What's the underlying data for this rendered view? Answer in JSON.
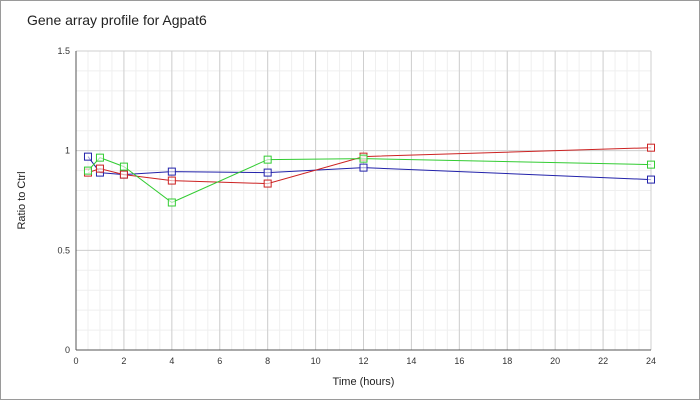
{
  "chart_data": {
    "type": "line",
    "title": "Gene array profile for Agpat6",
    "xlabel": "Time (hours)",
    "ylabel": "Ratio to Ctrl",
    "xlim": [
      0,
      24
    ],
    "ylim": [
      0,
      1.5
    ],
    "x_ticks": [
      0,
      2,
      4,
      6,
      8,
      10,
      12,
      14,
      16,
      18,
      20,
      22,
      24
    ],
    "y_ticks": [
      0,
      0.5,
      1,
      1.5
    ],
    "y_tick_labels": [
      "0",
      "0.5",
      "1",
      "1.5"
    ],
    "grid": true,
    "minor_grid": true,
    "marker": "square",
    "series": [
      {
        "color": "#2222aa",
        "x": [
          0.5,
          1,
          2,
          4,
          8,
          12,
          24
        ],
        "y": [
          0.97,
          0.89,
          0.88,
          0.895,
          0.89,
          0.915,
          0.855
        ]
      },
      {
        "color": "#cc2222",
        "x": [
          0.5,
          1,
          2,
          4,
          8,
          12,
          24
        ],
        "y": [
          0.89,
          0.91,
          0.88,
          0.85,
          0.835,
          0.97,
          1.015
        ]
      },
      {
        "color": "#33cc33",
        "x": [
          0.5,
          1,
          2,
          4,
          8,
          12,
          24
        ],
        "y": [
          0.9,
          0.965,
          0.92,
          0.74,
          0.955,
          0.96,
          0.93
        ]
      }
    ]
  }
}
